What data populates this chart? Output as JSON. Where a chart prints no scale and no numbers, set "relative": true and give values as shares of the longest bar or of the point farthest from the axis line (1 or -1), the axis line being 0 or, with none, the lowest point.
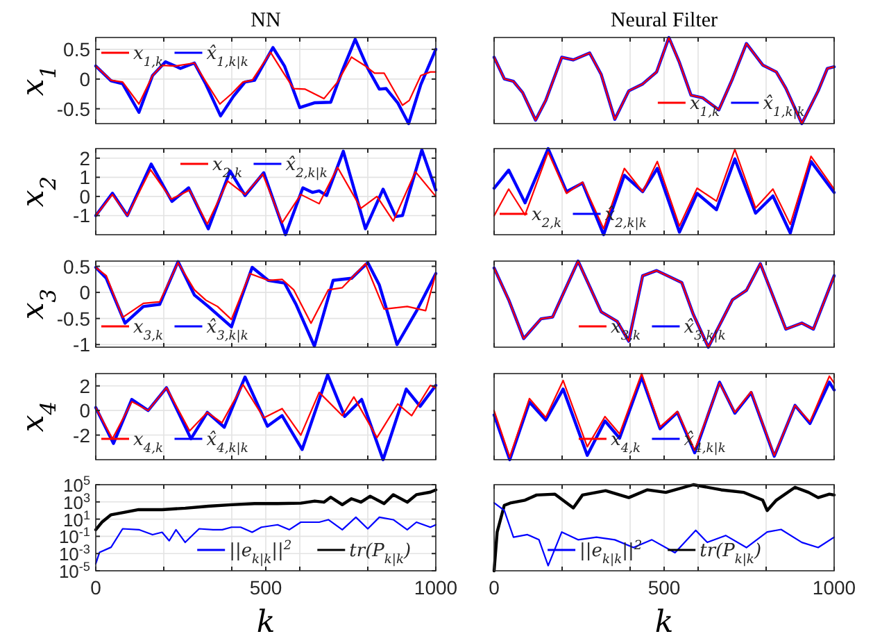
{
  "chart_data": [
    {
      "type": "line",
      "title": "NN",
      "ylabel": "x$_{1}$",
      "xlim": [
        0,
        1000
      ],
      "xticks": [
        0,
        {
          "value": 200,
          "label": null
        },
        {
          "value": 400,
          "label": null
        },
        500,
        {
          "value": 600,
          "label": null
        },
        {
          "value": 800,
          "label": null
        },
        1000
      ],
      "ylim": [
        -0.75,
        0.7
      ],
      "yticks": [
        -0.5,
        0,
        0.5
      ],
      "grid": true,
      "legend": "top left",
      "tick_labels": "y",
      "series": [
        {
          "name": "x$_{1,k}$",
          "color": "#ff0000",
          "x": [
            0,
            45,
            79,
            127,
            167,
            195,
            235,
            290,
            324,
            365,
            399,
            433,
            460,
            514,
            548,
            582,
            616,
            671,
            711,
            752,
            793,
            820,
            848,
            902,
            922,
            956,
            984,
            1000
          ],
          "values": [
            0.22,
            -0.02,
            -0.05,
            -0.42,
            0.06,
            0.23,
            0.22,
            0.27,
            -0.05,
            -0.42,
            -0.25,
            -0.05,
            -0.02,
            0.45,
            0.14,
            -0.16,
            -0.17,
            -0.33,
            -0.05,
            0.37,
            0.22,
            0.1,
            0.1,
            -0.44,
            -0.36,
            0.06,
            0.12,
            0.12
          ]
        },
        {
          "name": "x̂$_{1,k|k}$",
          "color": "#0000ff",
          "x": [
            0,
            45,
            79,
            127,
            167,
            205,
            249,
            290,
            324,
            367,
            405,
            439,
            467,
            521,
            555,
            600,
            643,
            691,
            725,
            763,
            800,
            834,
            854,
            888,
            920,
            956,
            1000
          ],
          "values": [
            0.22,
            -0.03,
            -0.08,
            -0.56,
            0.06,
            0.29,
            0.18,
            0.27,
            -0.09,
            -0.62,
            -0.29,
            -0.05,
            -0.02,
            0.53,
            0.22,
            -0.48,
            -0.4,
            -0.39,
            0.14,
            0.67,
            0.18,
            -0.17,
            -0.16,
            -0.4,
            -0.75,
            -0.09,
            0.5
          ]
        }
      ]
    },
    {
      "type": "line",
      "title": "Neural Filter",
      "relative": true,
      "xlim": [
        0,
        1000
      ],
      "xticks": [
        0,
        {
          "value": 200,
          "label": null
        },
        {
          "value": 400,
          "label": null
        },
        500,
        {
          "value": 600,
          "label": null
        },
        {
          "value": 800,
          "label": null
        },
        1000
      ],
      "grid": true,
      "legend": "bottom right",
      "tick_labels": false,
      "series": [
        {
          "name": "x$_{1,k}$",
          "color": "#ff0000",
          "x": [
            0,
            30,
            57,
            84,
            122,
            152,
            199,
            233,
            281,
            315,
            355,
            396,
            437,
            478,
            514,
            545,
            579,
            613,
            661,
            701,
            742,
            790,
            830,
            858,
            905,
            953,
            980,
            1000
          ],
          "values": [
            0.77,
            0.52,
            0.49,
            0.36,
            0.04,
            0.27,
            0.77,
            0.74,
            0.82,
            0.57,
            0.05,
            0.38,
            0.46,
            0.6,
            1,
            0.71,
            0.33,
            0.3,
            0.16,
            0.52,
            0.93,
            0.68,
            0.6,
            0.41,
            0,
            0.38,
            0.64,
            0.66
          ]
        },
        {
          "name": "x̂$_{1,k|k}$",
          "color": "#0000ff",
          "x": [
            0,
            30,
            57,
            84,
            122,
            152,
            199,
            233,
            281,
            315,
            355,
            396,
            437,
            478,
            514,
            545,
            579,
            613,
            661,
            701,
            742,
            790,
            830,
            858,
            905,
            953,
            980,
            1000
          ],
          "values": [
            0.77,
            0.52,
            0.49,
            0.36,
            0.04,
            0.27,
            0.77,
            0.74,
            0.82,
            0.57,
            0.05,
            0.38,
            0.46,
            0.6,
            1,
            0.71,
            0.33,
            0.3,
            0.16,
            0.52,
            0.93,
            0.68,
            0.6,
            0.41,
            0,
            0.38,
            0.64,
            0.66
          ]
        }
      ]
    },
    {
      "type": "line",
      "ylabel": "x$_{2}$",
      "xlim": [
        0,
        1000
      ],
      "xticks": [
        0,
        {
          "value": 200,
          "label": null
        },
        {
          "value": 400,
          "label": null
        },
        500,
        {
          "value": 600,
          "label": null
        },
        {
          "value": 800,
          "label": null
        },
        1000
      ],
      "ylim": [
        -2,
        2.5
      ],
      "yticks": [
        -1,
        0,
        1,
        2
      ],
      "grid": true,
      "legend": "top",
      "tick_labels": "y",
      "series": [
        {
          "name": "x$_{2,k}$",
          "color": "#ff0000",
          "x": [
            0,
            49,
            93,
            161,
            222,
            276,
            328,
            388,
            439,
            491,
            548,
            603,
            657,
            711,
            780,
            827,
            875,
            940,
            1000
          ],
          "values": [
            -1,
            0.1,
            -1,
            1.4,
            -0.14,
            0.33,
            -1.45,
            0.8,
            0.1,
            1.17,
            -1.38,
            0.1,
            -0.38,
            1.52,
            -0.62,
            0,
            -1.29,
            1.29,
            0
          ]
        },
        {
          "name": "x̂$_{2,k|k}$",
          "color": "#0000ff",
          "x": [
            0,
            49,
            93,
            163,
            224,
            273,
            331,
            395,
            439,
            494,
            558,
            609,
            637,
            657,
            679,
            728,
            793,
            845,
            882,
            902,
            959,
            1000
          ],
          "values": [
            -1,
            0.17,
            -1,
            1.69,
            -0.26,
            0.45,
            -1.69,
            1.33,
            0.05,
            1.24,
            -2,
            0.45,
            0.21,
            0.29,
            0.05,
            2.36,
            -1.69,
            0.38,
            -1.05,
            -1,
            2.43,
            0.33
          ]
        }
      ]
    },
    {
      "type": "line",
      "relative": true,
      "xlim": [
        0,
        1000
      ],
      "xticks": [
        0,
        {
          "value": 200,
          "label": null
        },
        {
          "value": 400,
          "label": null
        },
        500,
        {
          "value": 600,
          "label": null
        },
        {
          "value": 800,
          "label": null
        },
        1000
      ],
      "grid": true,
      "legend": "bottom left",
      "tick_labels": false,
      "series": [
        {
          "name": "x$_{2,k}$",
          "color": "#ff0000",
          "x": [
            0,
            43,
            91,
            159,
            213,
            260,
            322,
            383,
            437,
            480,
            545,
            597,
            654,
            708,
            769,
            820,
            871,
            932,
            1000
          ],
          "values": [
            0.22,
            0.53,
            0.23,
            0.96,
            0.48,
            0.61,
            0.07,
            0.77,
            0.5,
            0.85,
            0.1,
            0.54,
            0.39,
            0.99,
            0.31,
            0.53,
            0.12,
            0.91,
            0.53
          ]
        },
        {
          "name": "x̂$_{2,k|k}$",
          "color": "#0000ff",
          "x": [
            0,
            43,
            91,
            159,
            213,
            260,
            322,
            383,
            437,
            480,
            545,
            597,
            654,
            708,
            769,
            820,
            871,
            932,
            1000
          ],
          "values": [
            0.54,
            0.75,
            0.37,
            1,
            0.5,
            0.6,
            0,
            0.69,
            0.5,
            0.77,
            0.03,
            0.48,
            0.29,
            0.88,
            0.25,
            0.45,
            0.02,
            0.85,
            0.49
          ]
        }
      ]
    },
    {
      "type": "line",
      "ylabel": "x$_{3}$",
      "xlim": [
        0,
        1000
      ],
      "xticks": [
        0,
        {
          "value": 200,
          "label": null
        },
        {
          "value": 400,
          "label": null
        },
        500,
        {
          "value": 600,
          "label": null
        },
        {
          "value": 800,
          "label": null
        },
        1000
      ],
      "ylim": [
        -1.05,
        0.6
      ],
      "yticks": [
        -1,
        -0.5,
        0,
        0.5
      ],
      "grid": true,
      "legend": "bottom left",
      "tick_labels": "y",
      "series": [
        {
          "name": "x$_{3,k}$",
          "color": "#ff0000",
          "x": [
            0,
            31,
            79,
            140,
            188,
            242,
            290,
            324,
            358,
            399,
            453,
            507,
            548,
            582,
            633,
            684,
            725,
            793,
            848,
            916,
            970,
            1000
          ],
          "values": [
            0.48,
            0.32,
            -0.48,
            -0.21,
            -0.18,
            0.57,
            0.05,
            -0.15,
            -0.27,
            -0.52,
            0.36,
            0.23,
            0.25,
            0.05,
            -0.59,
            0.05,
            0.09,
            0.55,
            -0.32,
            -0.27,
            -0.35,
            0.36
          ]
        },
        {
          "name": "x̂$_{3,k|k}$",
          "color": "#0000ff",
          "x": [
            0,
            31,
            86,
            140,
            188,
            242,
            290,
            331,
            399,
            426,
            460,
            507,
            555,
            589,
            643,
            698,
            752,
            800,
            834,
            886,
            943,
            1000
          ],
          "values": [
            0.48,
            0.27,
            -0.59,
            -0.27,
            -0.23,
            0.59,
            -0.05,
            -0.27,
            -0.66,
            -0.14,
            0.48,
            0.23,
            0.18,
            -0.23,
            -1.03,
            0.23,
            0.27,
            0.57,
            0.14,
            -1,
            -0.36,
            0.36
          ]
        }
      ]
    },
    {
      "type": "line",
      "relative": true,
      "xlim": [
        0,
        1000
      ],
      "xticks": [
        0,
        {
          "value": 200,
          "label": null
        },
        {
          "value": 400,
          "label": null
        },
        500,
        {
          "value": 600,
          "label": null
        },
        {
          "value": 800,
          "label": null
        },
        1000
      ],
      "grid": true,
      "legend": "bottom",
      "tick_labels": false,
      "series": [
        {
          "name": "x$_{3,k}$",
          "color": "#ff0000",
          "x": [
            0,
            43,
            87,
            138,
            172,
            247,
            315,
            362,
            396,
            437,
            478,
            552,
            586,
            630,
            701,
            742,
            783,
            858,
            905,
            939,
            1000
          ],
          "values": [
            0.92,
            0.55,
            0.1,
            0.33,
            0.35,
            1,
            0.41,
            0.3,
            0.07,
            0.83,
            0.89,
            0.75,
            0.38,
            0,
            0.55,
            0.66,
            0.97,
            0.21,
            0.28,
            0.21,
            0.83
          ]
        },
        {
          "name": "x̂$_{3,k|k}$",
          "color": "#0000ff",
          "x": [
            0,
            43,
            87,
            138,
            172,
            247,
            315,
            362,
            396,
            437,
            478,
            552,
            586,
            630,
            701,
            742,
            783,
            858,
            905,
            939,
            1000
          ],
          "values": [
            0.92,
            0.55,
            0.1,
            0.33,
            0.35,
            1,
            0.41,
            0.3,
            0.07,
            0.83,
            0.89,
            0.75,
            0.38,
            0,
            0.55,
            0.66,
            0.97,
            0.21,
            0.28,
            0.21,
            0.83
          ]
        }
      ]
    },
    {
      "type": "line",
      "ylabel": "x$_{4}$",
      "xlim": [
        0,
        1000
      ],
      "xticks": [
        0,
        {
          "value": 200,
          "label": null
        },
        {
          "value": 400,
          "label": null
        },
        500,
        {
          "value": 600,
          "label": null
        },
        {
          "value": 800,
          "label": null
        },
        1000
      ],
      "ylim": [
        -4,
        3
      ],
      "yticks": [
        -2,
        0,
        2
      ],
      "grid": true,
      "legend": "bottom left",
      "tick_labels": "y",
      "series": [
        {
          "name": "x$_{4,k}$",
          "color": "#ff0000",
          "x": [
            0,
            49,
            106,
            154,
            208,
            276,
            328,
            371,
            433,
            494,
            548,
            603,
            657,
            725,
            759,
            827,
            888,
            929,
            984,
            1000
          ],
          "values": [
            0.23,
            -2.3,
            0.72,
            0,
            1.85,
            -1.66,
            -0.15,
            -1,
            2.1,
            -0.6,
            0.15,
            -2,
            1.47,
            -0.42,
            1.1,
            -2.2,
            0.53,
            -0.42,
            2.04,
            1.85
          ]
        },
        {
          "name": "x̂$_{4,k|k}$",
          "color": "#0000ff",
          "x": [
            0,
            52,
            106,
            154,
            208,
            280,
            328,
            378,
            439,
            505,
            548,
            607,
            682,
            732,
            782,
            845,
            913,
            954,
            1000
          ],
          "values": [
            0.23,
            -2.68,
            0.9,
            0,
            1.85,
            -2.3,
            -0.15,
            -1.36,
            2.72,
            -1.28,
            -0.42,
            -3.17,
            2.9,
            -0.49,
            0.9,
            -4,
            1.74,
            0.34,
            2.04
          ]
        }
      ]
    },
    {
      "type": "line",
      "relative": true,
      "xlim": [
        0,
        1000
      ],
      "xticks": [
        0,
        {
          "value": 200,
          "label": null
        },
        {
          "value": 400,
          "label": null
        },
        500,
        {
          "value": 600,
          "label": null
        },
        {
          "value": 800,
          "label": null
        },
        1000
      ],
      "grid": true,
      "legend": "bottom",
      "tick_labels": false,
      "series": [
        {
          "name": "x$_{4,k}$",
          "color": "#ff0000",
          "x": [
            0,
            46,
            104,
            152,
            203,
            274,
            326,
            369,
            434,
            488,
            539,
            590,
            663,
            708,
            756,
            824,
            885,
            929,
            986,
            1000
          ],
          "values": [
            0.57,
            0.03,
            0.71,
            0.49,
            0.92,
            0.15,
            0.5,
            0.3,
            1,
            0.38,
            0.56,
            0.11,
            0.89,
            0.55,
            0.79,
            0.05,
            0.63,
            0.44,
            0.97,
            0.89
          ]
        },
        {
          "name": "x̂$_{4,k|k}$",
          "color": "#0000ff",
          "x": [
            0,
            46,
            104,
            152,
            203,
            274,
            326,
            369,
            434,
            488,
            539,
            590,
            663,
            708,
            756,
            824,
            885,
            929,
            986,
            1000
          ],
          "values": [
            0.52,
            0,
            0.67,
            0.46,
            0.82,
            0.05,
            0.45,
            0.25,
            0.96,
            0.36,
            0.55,
            0.08,
            0.9,
            0.54,
            0.78,
            0.04,
            0.63,
            0.42,
            0.9,
            0.81
          ]
        }
      ]
    },
    {
      "type": "line",
      "xlabel": "k",
      "xlim": [
        0,
        1000
      ],
      "xticks": [
        0,
        {
          "value": 200,
          "label": null
        },
        {
          "value": 400,
          "label": null
        },
        500,
        {
          "value": 600,
          "label": null
        },
        {
          "value": 800,
          "label": null
        },
        1000
      ],
      "ylim": [
        1e-05,
        100000
      ],
      "yticks": [
        {
          "value": 1e-05,
          "label": "10$^{-5}$"
        },
        {
          "value": 0.001,
          "label": "10$^{-3}$"
        },
        {
          "value": 0.1,
          "label": "10$^{-1}$"
        },
        {
          "value": 10,
          "label": "10$^{1}$"
        },
        {
          "value": 1000,
          "label": "10$^{3}$"
        },
        {
          "value": 100000,
          "label": "10$^{5}$"
        }
      ],
      "log": true,
      "grid": true,
      "legend": "bottom right",
      "series": [
        {
          "name": "||e$_{k|k}$||$^{2}$",
          "color": "#0000ff",
          "x": [
            0,
            11,
            45,
            79,
            127,
            167,
            195,
            216,
            236,
            263,
            304,
            345,
            372,
            399,
            426,
            460,
            487,
            535,
            569,
            603,
            657,
            684,
            725,
            765,
            800,
            834,
            875,
            916,
            943,
            984,
            1000
          ],
          "values": [
            6.5e-05,
            0.0014,
            0.0054,
            0.76,
            0.59,
            0.155,
            0.3,
            0.031,
            0.59,
            0.02,
            0.76,
            0.59,
            0.59,
            1.15,
            1.15,
            0.3,
            1.15,
            2.2,
            0.59,
            4.4,
            4.4,
            8.5,
            0.59,
            16.6,
            0.76,
            16.6,
            8.5,
            0.59,
            4.4,
            1.15,
            2.2
          ]
        },
        {
          "name": "tr(P$_{k|k}$)",
          "color": "#000000",
          "x": [
            0,
            18,
            45,
            86,
            126,
            195,
            263,
            331,
            399,
            467,
            535,
            603,
            644,
            671,
            691,
            725,
            752,
            780,
            807,
            848,
            875,
            916,
            943,
            984,
            1000
          ],
          "values": [
            0.59,
            4.4,
            32,
            63,
            126,
            126,
            186,
            316,
            468,
            631,
            631,
            708,
            1259,
            933,
            3548,
            468,
            2344,
            933,
            4571,
            631,
            6918,
            933,
            6918,
            13490,
            25119
          ]
        }
      ]
    },
    {
      "type": "line",
      "xlabel": "k",
      "relative": true,
      "xlim": [
        0,
        1000
      ],
      "xticks": [
        0,
        {
          "value": 200,
          "label": null
        },
        {
          "value": 400,
          "label": null
        },
        500,
        {
          "value": 600,
          "label": null
        },
        {
          "value": 800,
          "label": null
        },
        1000
      ],
      "grid": true,
      "legend": "bottom",
      "tick_labels": "x",
      "series": [
        {
          "name": "||e$_{k|k}$||$^{2}$",
          "color": "#0000ff",
          "x": [
            0,
            30,
            57,
            98,
            132,
            159,
            199,
            247,
            301,
            355,
            410,
            464,
            532,
            593,
            627,
            681,
            742,
            803,
            844,
            905,
            953,
            1000
          ],
          "values": [
            0.79,
            0.7,
            0.39,
            0.42,
            0.36,
            0.06,
            0.45,
            0.36,
            0.39,
            0.36,
            0.27,
            0.36,
            0.21,
            0.47,
            0.33,
            0.41,
            0.27,
            0.45,
            0.48,
            0.33,
            0.27,
            0.39
          ]
        },
        {
          "name": "tr(P$_{k|k}$)",
          "color": "#000000",
          "x": [
            0,
            9,
            30,
            50,
            91,
            125,
            179,
            233,
            260,
            328,
            396,
            450,
            505,
            586,
            668,
            735,
            790,
            803,
            830,
            885,
            925,
            953,
            986,
            1000
          ],
          "values": [
            0,
            0.45,
            0.76,
            0.79,
            0.82,
            0.88,
            0.89,
            0.73,
            0.88,
            0.93,
            0.85,
            0.94,
            0.91,
            1,
            0.94,
            0.91,
            0.82,
            0.7,
            0.82,
            0.97,
            0.91,
            0.85,
            0.89,
            0.88
          ]
        }
      ]
    }
  ]
}
